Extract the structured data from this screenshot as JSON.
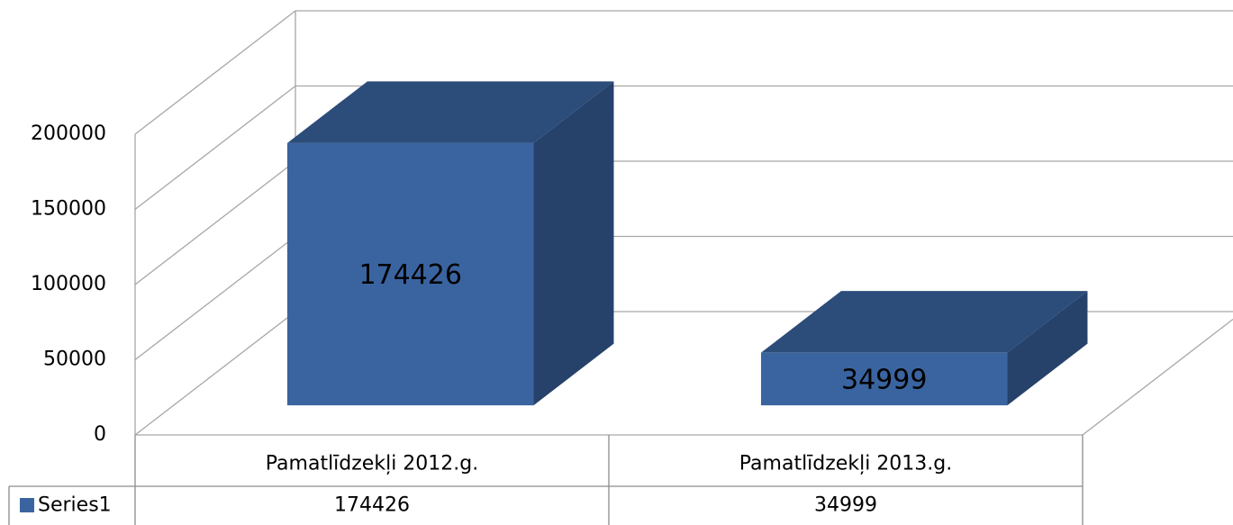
{
  "chart_data": {
    "type": "bar",
    "categories": [
      "Pamatlīdzekļi  2012.g.",
      "Pamatlīdzekļi  2013.g."
    ],
    "series": [
      {
        "name": "Series1",
        "color": "#3a64a0",
        "values": [
          174426,
          34999
        ]
      }
    ],
    "ylim": [
      0,
      200000
    ],
    "yticks": [
      0,
      50000,
      100000,
      150000,
      200000
    ],
    "grid": true,
    "data_labels": true,
    "data_table": true
  }
}
